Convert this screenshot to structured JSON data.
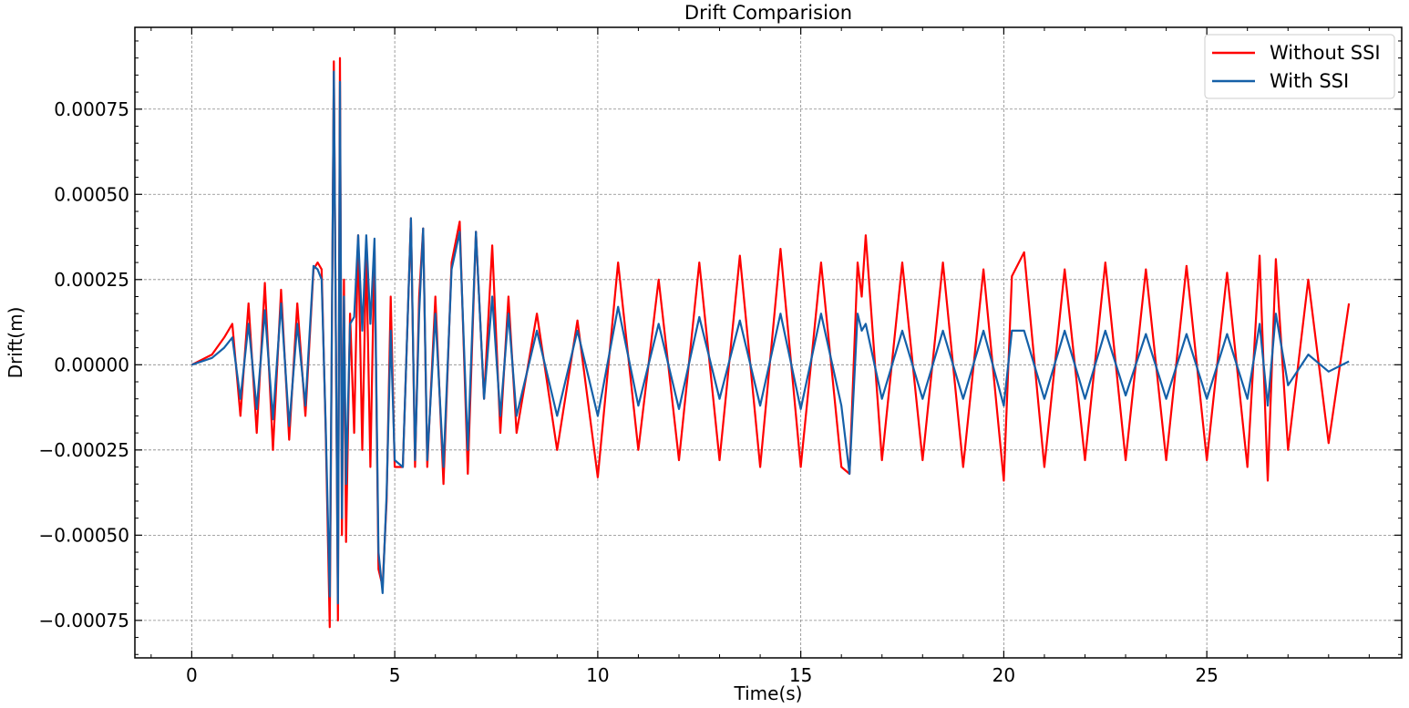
{
  "chart_data": {
    "type": "line",
    "title": "Drift Comparision",
    "xlabel": "Time(s)",
    "ylabel": "Drift(m)",
    "xlim": [
      -1.4,
      29.8
    ],
    "ylim": [
      -0.00086,
      0.00099
    ],
    "xticks": [
      0,
      5,
      10,
      15,
      20,
      25
    ],
    "xtick_labels": [
      "0",
      "5",
      "10",
      "15",
      "20",
      "25"
    ],
    "yticks": [
      -0.00075,
      -0.0005,
      -0.00025,
      0.0,
      0.00025,
      0.0005,
      0.00075
    ],
    "ytick_labels": [
      "−0.00075",
      "−0.00050",
      "−0.00025",
      "0.00000",
      "0.00025",
      "0.00050",
      "0.00075"
    ],
    "grid": true,
    "legend_position": "top-right",
    "series": [
      {
        "name": "Without SSI",
        "color": "#ff0000",
        "x": [
          0,
          0.5,
          0.8,
          1.0,
          1.2,
          1.4,
          1.6,
          1.8,
          2.0,
          2.2,
          2.4,
          2.6,
          2.8,
          3.0,
          3.1,
          3.2,
          3.3,
          3.4,
          3.5,
          3.6,
          3.65,
          3.7,
          3.75,
          3.8,
          3.9,
          4.0,
          4.1,
          4.2,
          4.3,
          4.4,
          4.5,
          4.6,
          4.7,
          4.8,
          4.9,
          5.0,
          5.2,
          5.4,
          5.5,
          5.6,
          5.7,
          5.8,
          6.0,
          6.2,
          6.4,
          6.6,
          6.8,
          7.0,
          7.2,
          7.4,
          7.6,
          7.8,
          8.0,
          8.5,
          9.0,
          9.5,
          10.0,
          10.5,
          11.0,
          11.5,
          12.0,
          12.5,
          13.0,
          13.5,
          14.0,
          14.5,
          15.0,
          15.5,
          16.0,
          16.2,
          16.4,
          16.5,
          16.6,
          17.0,
          17.5,
          18.0,
          18.5,
          19.0,
          19.5,
          20.0,
          20.2,
          20.5,
          21.0,
          21.5,
          22.0,
          22.5,
          23.0,
          23.5,
          24.0,
          24.5,
          25.0,
          25.5,
          26.0,
          26.3,
          26.5,
          26.7,
          27.0,
          27.5,
          28.0,
          28.5
        ],
        "values": [
          0.0,
          3e-05,
          8e-05,
          0.00012,
          -0.00015,
          0.00018,
          -0.0002,
          0.00024,
          -0.00025,
          0.00022,
          -0.00022,
          0.00018,
          -0.00015,
          0.00028,
          0.0003,
          0.00028,
          -0.0002,
          -0.00077,
          0.00089,
          -0.00075,
          0.0009,
          -0.0005,
          0.00025,
          -0.00052,
          0.00015,
          -0.0002,
          0.00038,
          -0.00025,
          0.00033,
          -0.0003,
          0.00035,
          -0.0006,
          -0.00065,
          -0.0004,
          0.0002,
          -0.0003,
          -0.0003,
          0.00043,
          -0.0003,
          0.0002,
          0.0004,
          -0.0003,
          0.0002,
          -0.00035,
          0.0003,
          0.00042,
          -0.00032,
          0.00039,
          -0.0001,
          0.00035,
          -0.0002,
          0.0002,
          -0.0002,
          0.00015,
          -0.00025,
          0.00013,
          -0.00033,
          0.0003,
          -0.00025,
          0.00025,
          -0.00028,
          0.0003,
          -0.00028,
          0.00032,
          -0.0003,
          0.00034,
          -0.0003,
          0.0003,
          -0.0003,
          -0.00032,
          0.0003,
          0.0002,
          0.00038,
          -0.00028,
          0.0003,
          -0.00028,
          0.0003,
          -0.0003,
          0.00028,
          -0.00034,
          0.00026,
          0.00033,
          -0.0003,
          0.00028,
          -0.00028,
          0.0003,
          -0.00028,
          0.00028,
          -0.00028,
          0.00029,
          -0.00028,
          0.00027,
          -0.0003,
          0.00032,
          -0.00034,
          0.00031,
          -0.00025,
          0.00025,
          -0.00023,
          0.00018
        ]
      },
      {
        "name": "With SSI",
        "color": "#1560a8",
        "x": [
          0,
          0.5,
          0.8,
          1.0,
          1.2,
          1.4,
          1.6,
          1.8,
          2.0,
          2.2,
          2.4,
          2.6,
          2.8,
          3.0,
          3.1,
          3.2,
          3.3,
          3.4,
          3.5,
          3.6,
          3.65,
          3.7,
          3.75,
          3.8,
          3.9,
          4.0,
          4.1,
          4.2,
          4.3,
          4.4,
          4.5,
          4.6,
          4.7,
          4.8,
          4.9,
          5.0,
          5.2,
          5.4,
          5.5,
          5.6,
          5.7,
          5.8,
          6.0,
          6.2,
          6.4,
          6.6,
          6.8,
          7.0,
          7.2,
          7.4,
          7.6,
          7.8,
          8.0,
          8.5,
          9.0,
          9.5,
          10.0,
          10.5,
          11.0,
          11.5,
          12.0,
          12.5,
          13.0,
          13.5,
          14.0,
          14.5,
          15.0,
          15.5,
          16.0,
          16.2,
          16.4,
          16.5,
          16.6,
          17.0,
          17.5,
          18.0,
          18.5,
          19.0,
          19.5,
          20.0,
          20.2,
          20.5,
          21.0,
          21.5,
          22.0,
          22.5,
          23.0,
          23.5,
          24.0,
          24.5,
          25.0,
          25.5,
          26.0,
          26.3,
          26.5,
          26.7,
          27.0,
          27.5,
          28.0,
          28.5
        ],
        "values": [
          0.0,
          2e-05,
          5e-05,
          8e-05,
          -0.0001,
          0.00012,
          -0.00013,
          0.00016,
          -0.00016,
          0.00018,
          -0.00018,
          0.00012,
          -0.00012,
          0.00029,
          0.00028,
          0.00025,
          -0.00018,
          -0.00068,
          0.00086,
          -0.0007,
          0.00083,
          -0.00045,
          0.0002,
          -0.00035,
          0.00012,
          0.00014,
          0.00038,
          0.0001,
          0.00038,
          0.00012,
          0.00037,
          -0.00055,
          -0.00067,
          -0.00038,
          0.0001,
          -0.00028,
          -0.0003,
          0.00043,
          -0.00028,
          0.00015,
          0.0004,
          -0.00028,
          0.00015,
          -0.0003,
          0.00028,
          0.00039,
          -0.00025,
          0.00039,
          -0.0001,
          0.0002,
          -0.00015,
          0.00015,
          -0.00015,
          0.0001,
          -0.00015,
          0.0001,
          -0.00015,
          0.00017,
          -0.00012,
          0.00012,
          -0.00013,
          0.00014,
          -0.0001,
          0.00013,
          -0.00012,
          0.00015,
          -0.00013,
          0.00015,
          -0.00012,
          -0.00032,
          0.00015,
          0.0001,
          0.00012,
          -0.0001,
          0.0001,
          -0.0001,
          0.0001,
          -0.0001,
          0.0001,
          -0.00012,
          0.0001,
          0.0001,
          -0.0001,
          0.0001,
          -0.0001,
          0.0001,
          -9e-05,
          9e-05,
          -0.0001,
          9e-05,
          -0.0001,
          9e-05,
          -0.0001,
          0.00012,
          -0.00012,
          0.00015,
          -6e-05,
          3e-05,
          -2e-05,
          1e-05
        ]
      }
    ]
  }
}
